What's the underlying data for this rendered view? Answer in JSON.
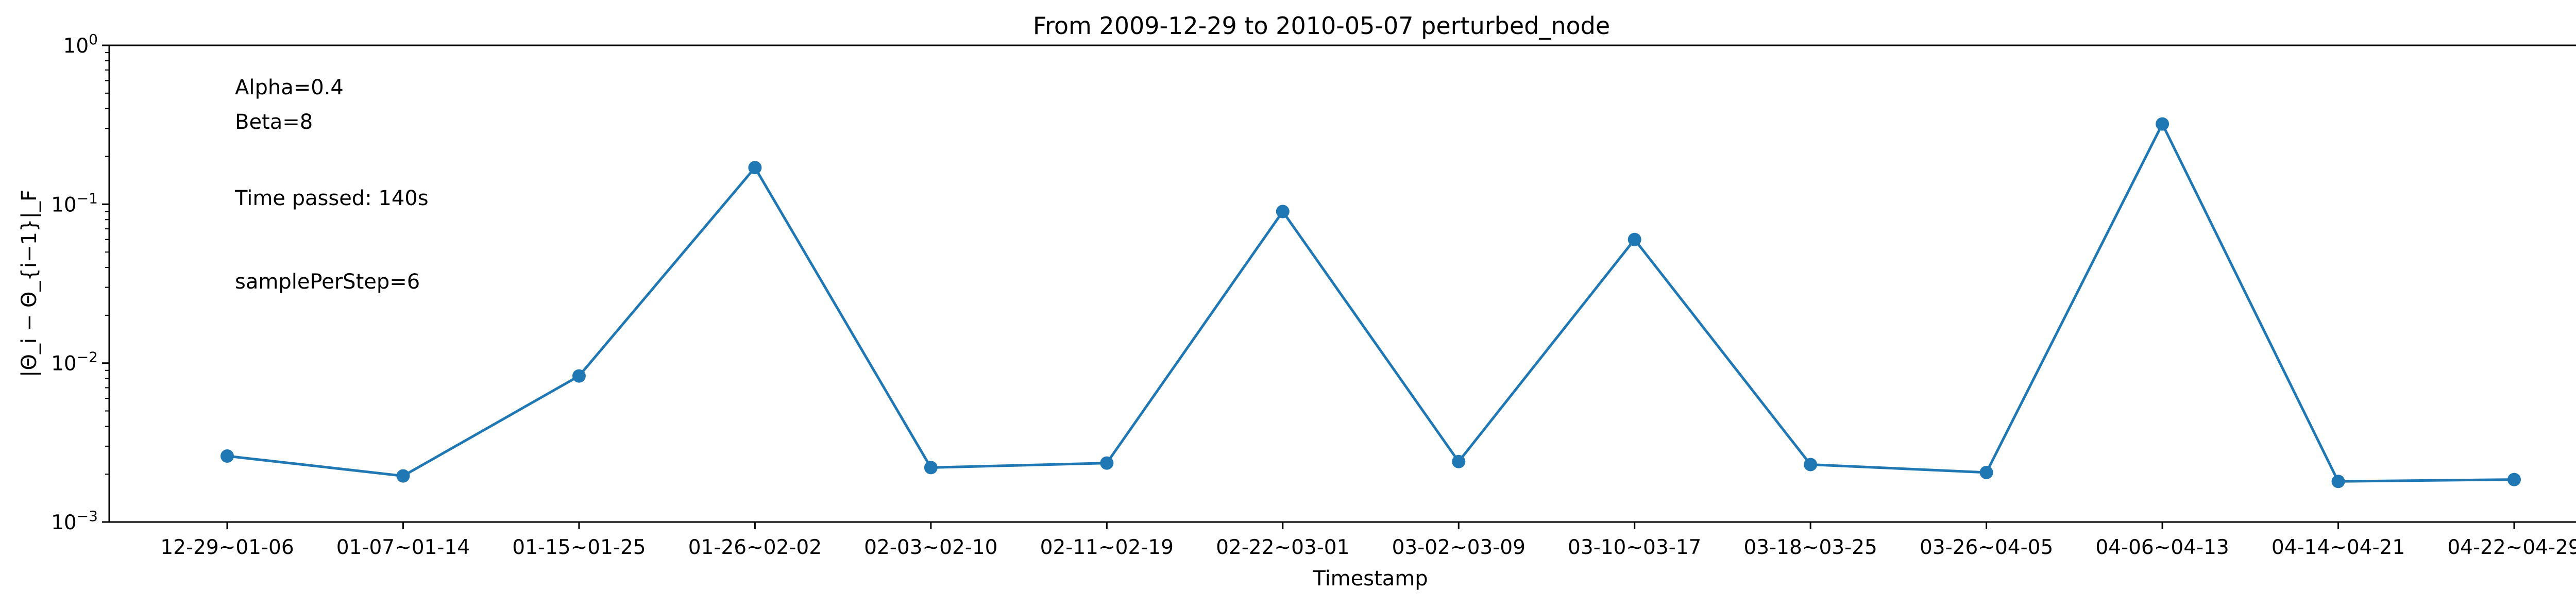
{
  "chart_data": {
    "type": "line",
    "title": "From 2009-12-29 to 2010-05-07 perturbed_node",
    "xlabel": "Timestamp",
    "ylabel": "|Θ_i − Θ_{i−1}|_F",
    "yscale": "log",
    "ylim": [
      0.001,
      1
    ],
    "yticks": [
      {
        "value": 1,
        "base": "10",
        "exp": "0"
      },
      {
        "value": 0.1,
        "base": "10",
        "exp": "−1"
      },
      {
        "value": 0.01,
        "base": "10",
        "exp": "−2"
      },
      {
        "value": 0.001,
        "base": "10",
        "exp": "−3"
      }
    ],
    "grid": false,
    "legend": "none",
    "color": "#1f77b4",
    "categories": [
      "12-29~01-06",
      "01-07~01-14",
      "01-15~01-25",
      "01-26~02-02",
      "02-03~02-10",
      "02-11~02-19",
      "02-22~03-01",
      "03-02~03-09",
      "03-10~03-17",
      "03-18~03-25",
      "03-26~04-05",
      "04-06~04-13",
      "04-14~04-21",
      "04-22~04-29"
    ],
    "values": [
      0.0026,
      0.00195,
      0.0083,
      0.17,
      0.0022,
      0.00235,
      0.09,
      0.0024,
      0.06,
      0.0023,
      0.00205,
      0.32,
      0.0018,
      0.00185
    ],
    "annotations": [
      "Alpha=0.4",
      "Beta=8",
      "Time passed: 140s",
      "samplePerStep=6"
    ]
  }
}
